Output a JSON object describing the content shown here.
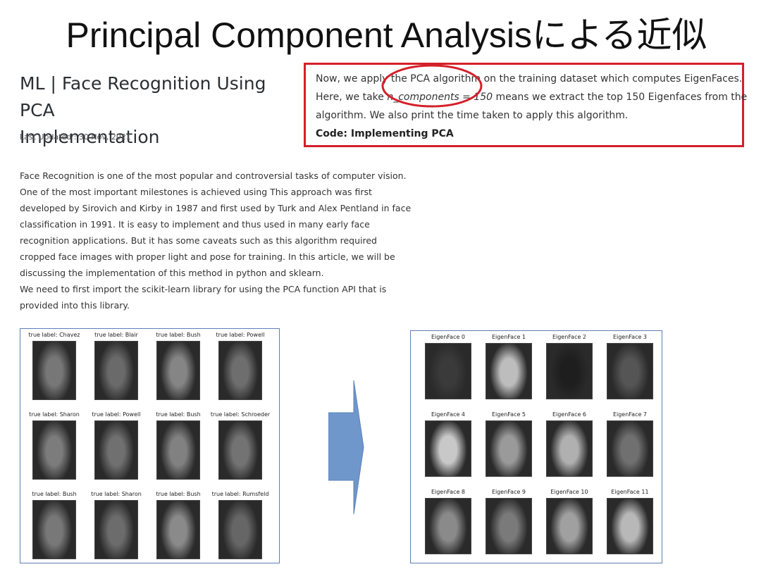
{
  "slide": {
    "title": "Principal Component Analysisによる近似"
  },
  "article": {
    "title_line1": "ML | Face Recognition Using PCA",
    "title_line2": "Implementation",
    "updated": "Last Updated : 30 Nov, 2021",
    "body_lines": [
      "Face Recognition is one of the most popular and controversial tasks of computer vision.",
      "One of the most important milestones is achieved using This approach was first",
      "developed by Sirovich and Kirby in 1987 and first used by Turk and Alex Pentland in face",
      "classification in 1991. It is easy to implement and thus used in many early face",
      "recognition applications. But it has some caveats such as this algorithm required",
      "cropped face images with proper light and pose for training. In this article, we will be",
      "discussing the implementation of this method in python and sklearn.",
      "We need to first import the scikit-learn library for using the PCA function API that is",
      "provided into this library."
    ]
  },
  "note": {
    "line1": "Now, we apply the PCA algorithm on the training dataset which computes EigenFaces.",
    "line2_pre": "Here, we take ",
    "line2_em": "n_components = 150",
    "line2_post": " means we extract the top 150 Eigenfaces from the",
    "line3": "algorithm. We also print the time taken to apply this algorithm.",
    "code_label": "Code: Implementing PCA",
    "box_color": "#d4202a"
  },
  "faces": {
    "labels": [
      "true label:   Chavez",
      "true label:   Blair",
      "true label:   Bush",
      "true label:   Powell",
      "true label:   Sharon",
      "true label:   Powell",
      "true label:   Bush",
      "true label:   Schroeder",
      "true label:   Bush",
      "true label:   Sharon",
      "true label:   Bush",
      "true label:   Rumsfeld"
    ]
  },
  "eigenfaces": {
    "labels": [
      "EigenFace 0",
      "EigenFace 1",
      "EigenFace 2",
      "EigenFace 3",
      "EigenFace 4",
      "EigenFace 5",
      "EigenFace 6",
      "EigenFace 7",
      "EigenFace 8",
      "EigenFace 9",
      "EigenFace 10",
      "EigenFace 11"
    ]
  },
  "colors": {
    "arrow": "#6f97cc",
    "panel_border": "#5b7fb5"
  }
}
